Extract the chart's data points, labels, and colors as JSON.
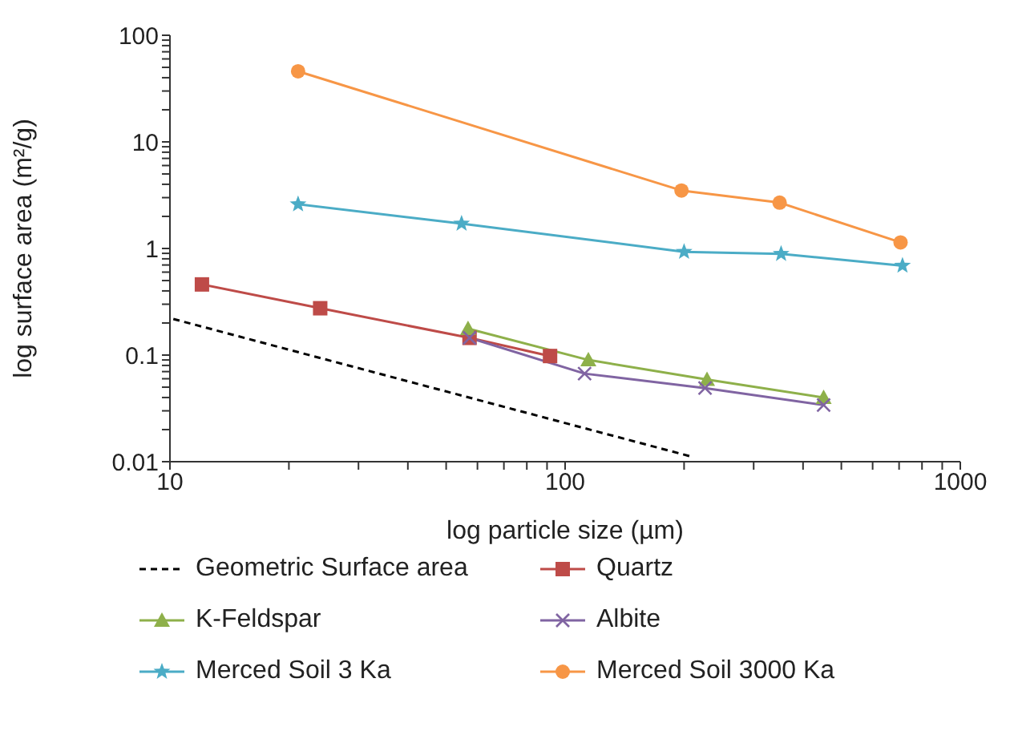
{
  "chart_data": {
    "type": "line",
    "xlabel": "log particle size (µm)",
    "ylabel": "log surface area (m²/g)",
    "log": "xy",
    "legend": "bottom",
    "xlim": [
      10,
      1000
    ],
    "ylim": [
      0.01,
      100
    ],
    "xticks": [
      10,
      {
        "value": 20,
        "label": null
      },
      {
        "value": 30,
        "label": null
      },
      {
        "value": 40,
        "label": null
      },
      {
        "value": 50,
        "label": null
      },
      {
        "value": 60,
        "label": null
      },
      {
        "value": 70,
        "label": null
      },
      {
        "value": 80,
        "label": null
      },
      {
        "value": 90,
        "label": null
      },
      100,
      {
        "value": 200,
        "label": null
      },
      {
        "value": 300,
        "label": null
      },
      {
        "value": 400,
        "label": null
      },
      {
        "value": 500,
        "label": null
      },
      {
        "value": 600,
        "label": null
      },
      {
        "value": 700,
        "label": null
      },
      {
        "value": 800,
        "label": null
      },
      {
        "value": 900,
        "label": null
      },
      1000
    ],
    "yticks": [
      0.01,
      {
        "value": 0.02,
        "label": null
      },
      {
        "value": 0.03,
        "label": null
      },
      {
        "value": 0.04,
        "label": null
      },
      {
        "value": 0.05,
        "label": null
      },
      {
        "value": 0.06,
        "label": null
      },
      {
        "value": 0.07,
        "label": null
      },
      {
        "value": 0.08,
        "label": null
      },
      {
        "value": 0.09,
        "label": null
      },
      0.1,
      {
        "value": 0.2,
        "label": null
      },
      {
        "value": 0.3,
        "label": null
      },
      {
        "value": 0.4,
        "label": null
      },
      {
        "value": 0.5,
        "label": null
      },
      {
        "value": 0.6,
        "label": null
      },
      {
        "value": 0.7,
        "label": null
      },
      {
        "value": 0.8,
        "label": null
      },
      {
        "value": 0.9,
        "label": null
      },
      1,
      {
        "value": 2,
        "label": null
      },
      {
        "value": 3,
        "label": null
      },
      {
        "value": 4,
        "label": null
      },
      {
        "value": 5,
        "label": null
      },
      {
        "value": 6,
        "label": null
      },
      {
        "value": 7,
        "label": null
      },
      {
        "value": 8,
        "label": null
      },
      {
        "value": 9,
        "label": null
      },
      10,
      {
        "value": 20,
        "label": null
      },
      {
        "value": 30,
        "label": null
      },
      {
        "value": 40,
        "label": null
      },
      {
        "value": 50,
        "label": null
      },
      {
        "value": 60,
        "label": null
      },
      {
        "value": 70,
        "label": null
      },
      {
        "value": 80,
        "label": null
      },
      {
        "value": 90,
        "label": null
      },
      100
    ],
    "series": [
      {
        "name": "Geometric Surface area",
        "color": "#000000",
        "line_style": "dashed",
        "marker": "none",
        "x": [
          10.2,
          210
        ],
        "values": [
          0.218,
          0.0111
        ]
      },
      {
        "name": "Quartz",
        "color": "#be4b48",
        "marker": "square",
        "x": [
          12.05,
          24,
          57.3,
          91.6
        ],
        "values": [
          0.46,
          0.275,
          0.145,
          0.098
        ]
      },
      {
        "name": "K-Feldspar",
        "color": "#8eb04a",
        "marker": "triangle",
        "x": [
          56.8,
          114.5,
          228.6,
          451
        ],
        "values": [
          0.177,
          0.09,
          0.059,
          0.04
        ]
      },
      {
        "name": "Albite",
        "color": "#8064a2",
        "marker": "cross",
        "x": [
          57.3,
          112,
          226,
          451
        ],
        "values": [
          0.145,
          0.067,
          0.049,
          0.034
        ]
      },
      {
        "name": "Merced Soil 3 Ka",
        "color": "#4bacc6",
        "marker": "star",
        "x": [
          21.1,
          54.7,
          200,
          352,
          714
        ],
        "values": [
          2.6,
          1.71,
          0.93,
          0.89,
          0.69
        ]
      },
      {
        "name": "Merced Soil 3000 Ka",
        "color": "#f79646",
        "marker": "circle",
        "x": [
          21.1,
          197,
          349,
          706
        ],
        "values": [
          45.9,
          3.5,
          2.69,
          1.14
        ]
      }
    ]
  }
}
